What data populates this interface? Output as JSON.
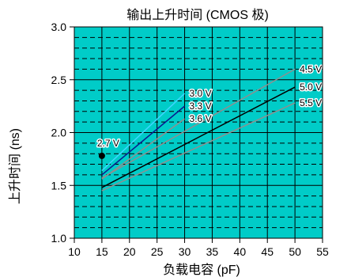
{
  "chart_data": {
    "type": "line",
    "title": "输出上升时间 (CMOS 极)",
    "xlabel": "负载电容 (pF)",
    "ylabel": "上升时间 (ns)",
    "xlim": [
      10,
      55
    ],
    "ylim": [
      1.0,
      3.0
    ],
    "x_ticks": [
      10,
      15,
      20,
      25,
      30,
      35,
      40,
      45,
      50,
      55
    ],
    "y_ticks": [
      1.0,
      1.5,
      2.0,
      2.5,
      3.0
    ],
    "x_tick_labels": [
      "10",
      "15",
      "20",
      "25",
      "30",
      "35",
      "40",
      "45",
      "50",
      "55"
    ],
    "y_tick_labels": [
      "1.0",
      "1.5",
      "2.0",
      "2.5",
      "3.0"
    ],
    "grid": true,
    "colors": {
      "background": "#00ccc8",
      "frame": "#000000",
      "grid_major": "#000000",
      "grid_minor": "#000000"
    },
    "series": [
      {
        "name": "2.7 V",
        "x": [
          15,
          15
        ],
        "y": [
          1.78,
          1.78
        ],
        "color": "#000000",
        "marker": "dot"
      },
      {
        "name": "3.0 V",
        "x": [
          15,
          30
        ],
        "y": [
          1.64,
          2.37
        ],
        "color": "#3fd5ff"
      },
      {
        "name": "3.3 V",
        "x": [
          15,
          30
        ],
        "y": [
          1.6,
          2.25
        ],
        "color": "#0a1a8f"
      },
      {
        "name": "3.6 V",
        "x": [
          15,
          30
        ],
        "y": [
          1.56,
          2.13
        ],
        "color": "#8f8f8f"
      },
      {
        "name": "4.5 V",
        "x": [
          15,
          50
        ],
        "y": [
          1.57,
          2.6
        ],
        "color": "#8f8f8f"
      },
      {
        "name": "5.0 V",
        "x": [
          15,
          50
        ],
        "y": [
          1.48,
          2.43
        ],
        "color": "#000000"
      },
      {
        "name": "5.5 V",
        "x": [
          15,
          50
        ],
        "y": [
          1.45,
          2.28
        ],
        "color": "#8f8f8f"
      }
    ]
  }
}
